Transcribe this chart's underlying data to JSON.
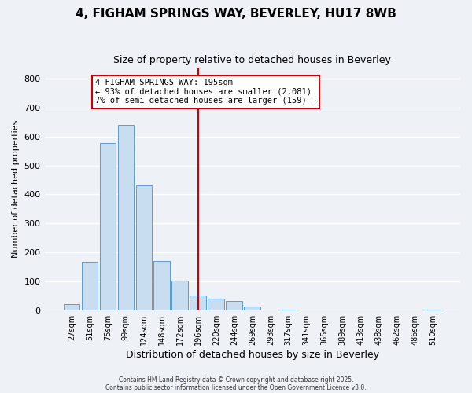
{
  "title": "4, FIGHAM SPRINGS WAY, BEVERLEY, HU17 8WB",
  "subtitle": "Size of property relative to detached houses in Beverley",
  "xlabel": "Distribution of detached houses by size in Beverley",
  "ylabel": "Number of detached properties",
  "bar_labels": [
    "27sqm",
    "51sqm",
    "75sqm",
    "99sqm",
    "124sqm",
    "148sqm",
    "172sqm",
    "196sqm",
    "220sqm",
    "244sqm",
    "269sqm",
    "293sqm",
    "317sqm",
    "341sqm",
    "365sqm",
    "389sqm",
    "413sqm",
    "438sqm",
    "462sqm",
    "486sqm",
    "510sqm"
  ],
  "bar_values": [
    20,
    168,
    577,
    640,
    430,
    170,
    103,
    52,
    40,
    33,
    13,
    0,
    2,
    0,
    0,
    0,
    0,
    0,
    0,
    0,
    2
  ],
  "bar_color": "#c8ddf0",
  "bar_edge_color": "#5b9bd5",
  "vline_x": 7,
  "vline_color": "#cc0000",
  "annotation_title": "4 FIGHAM SPRINGS WAY: 195sqm",
  "annotation_line1": "← 93% of detached houses are smaller (2,081)",
  "annotation_line2": "7% of semi-detached houses are larger (159) →",
  "annotation_box_color": "#ffffff",
  "annotation_box_edge": "#cc0000",
  "ylim": [
    0,
    840
  ],
  "yticks": [
    0,
    100,
    200,
    300,
    400,
    500,
    600,
    700,
    800
  ],
  "background_color": "#eef2f7",
  "grid_color": "#ffffff",
  "footer1": "Contains HM Land Registry data © Crown copyright and database right 2025.",
  "footer2": "Contains public sector information licensed under the Open Government Licence v3.0."
}
